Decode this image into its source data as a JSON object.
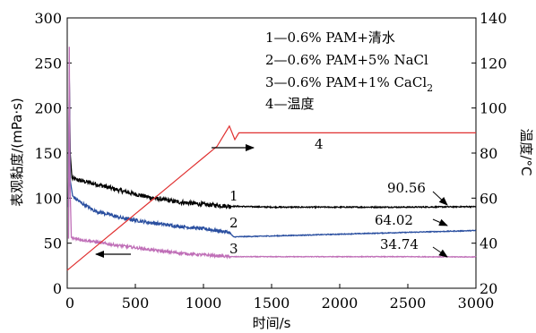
{
  "chart_data": {
    "type": "line",
    "xlabel": "时间/s",
    "ylabel_left": "表观黏度/(mPa·s)",
    "ylabel_right": "温度/°C",
    "xlim": [
      0,
      3000
    ],
    "ylim_left": [
      0,
      300
    ],
    "ylim_right": [
      20,
      140
    ],
    "x_ticks": [
      500,
      1000,
      1500,
      2000,
      2500,
      3000
    ],
    "x_tick_labels": [
      "500",
      "1000",
      "1500",
      "2000",
      "2500",
      "3000"
    ],
    "x_origin_label": "0",
    "y_left_ticks": [
      0,
      50,
      100,
      150,
      200,
      250,
      300
    ],
    "y_left_tick_labels": [
      "0",
      "50",
      "100",
      "150",
      "200",
      "250",
      "300"
    ],
    "y_right_ticks": [
      20,
      40,
      60,
      80,
      100,
      120,
      140
    ],
    "y_right_tick_labels": [
      "20",
      "40",
      "60",
      "80",
      "100",
      "120",
      "140"
    ],
    "grid": false,
    "legend_position": "top-right",
    "legend": [
      {
        "number": "1",
        "text": "1—0.6% PAM+清水"
      },
      {
        "number": "2",
        "text": "2—0.6% PAM+5% NaCl"
      },
      {
        "number": "3",
        "text": "3—0.6% PAM+1% CaCl",
        "subscript": "2"
      },
      {
        "number": "4",
        "text": "4—温度"
      }
    ],
    "series": [
      {
        "label": "1",
        "color": "#000000",
        "axis": "left",
        "noise": 2.4,
        "end_value": "90.56",
        "points": [
          [
            10,
            100
          ],
          [
            15,
            235
          ],
          [
            22,
            150
          ],
          [
            35,
            122
          ],
          [
            80,
            120
          ],
          [
            200,
            116
          ],
          [
            400,
            108
          ],
          [
            600,
            101
          ],
          [
            800,
            96
          ],
          [
            1000,
            93
          ],
          [
            1100,
            92
          ],
          [
            1200,
            91
          ],
          [
            1500,
            90
          ],
          [
            2000,
            90
          ],
          [
            2500,
            90
          ],
          [
            3000,
            90.56
          ]
        ]
      },
      {
        "label": "2",
        "color": "#2a4fa0",
        "axis": "left",
        "noise": 1.8,
        "end_value": "64.02",
        "points": [
          [
            10,
            90
          ],
          [
            15,
            240
          ],
          [
            22,
            120
          ],
          [
            40,
            102
          ],
          [
            100,
            95
          ],
          [
            200,
            86
          ],
          [
            400,
            78
          ],
          [
            600,
            73
          ],
          [
            800,
            69
          ],
          [
            1000,
            66
          ],
          [
            1100,
            64
          ],
          [
            1190,
            62
          ],
          [
            1220,
            57
          ],
          [
            1500,
            58
          ],
          [
            2000,
            60
          ],
          [
            2500,
            62
          ],
          [
            3000,
            64.02
          ]
        ]
      },
      {
        "label": "3",
        "color": "#c070b8",
        "axis": "left",
        "noise": 1.5,
        "end_value": "34.74",
        "points": [
          [
            10,
            55
          ],
          [
            15,
            268
          ],
          [
            20,
            120
          ],
          [
            30,
            56
          ],
          [
            100,
            54
          ],
          [
            300,
            49
          ],
          [
            500,
            45
          ],
          [
            700,
            41
          ],
          [
            900,
            38
          ],
          [
            1100,
            36
          ],
          [
            1200,
            35
          ],
          [
            1500,
            35
          ],
          [
            2000,
            35
          ],
          [
            2500,
            35
          ],
          [
            3000,
            34.74
          ]
        ]
      },
      {
        "label": "4",
        "color": "#e03030",
        "axis": "right",
        "noise": 0,
        "end_value": "",
        "points": [
          [
            0,
            28
          ],
          [
            100,
            33
          ],
          [
            200,
            38
          ],
          [
            300,
            43
          ],
          [
            400,
            48
          ],
          [
            500,
            53
          ],
          [
            600,
            58
          ],
          [
            700,
            63
          ],
          [
            800,
            68
          ],
          [
            900,
            73
          ],
          [
            1000,
            78
          ],
          [
            1100,
            83
          ],
          [
            1190,
            92
          ],
          [
            1230,
            86
          ],
          [
            1260,
            89
          ],
          [
            1300,
            89
          ],
          [
            3000,
            89
          ]
        ]
      }
    ],
    "annotations": {
      "arrow_right_near": "4",
      "arrow_left_near": "3"
    }
  }
}
